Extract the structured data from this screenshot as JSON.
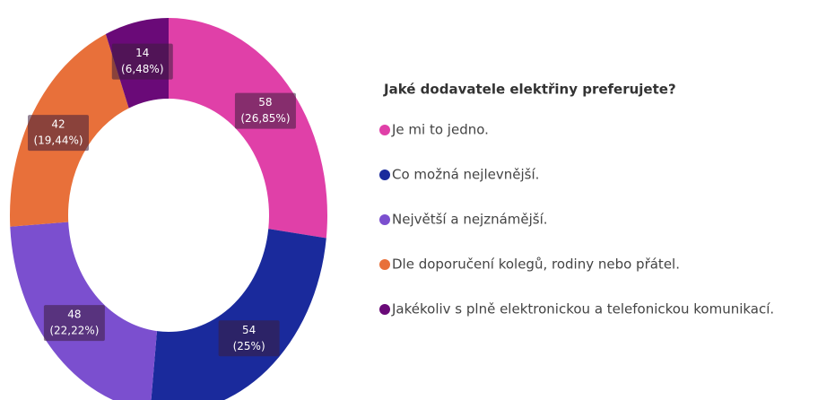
{
  "chart_data": {
    "type": "pie",
    "donut": true,
    "title": "Jaké dodavatele elektřiny preferujete?",
    "categories": [
      "Je mi to jedno.",
      "Co možná nejlevnější.",
      "Největší a nejznámější.",
      "Dle doporučení kolegů, rodiny nebo přátel.",
      "Jakékoliv s plně elektronickou a telefonickou komunikací."
    ],
    "values": [
      58,
      54,
      48,
      42,
      14
    ],
    "percent_labels": [
      "(26,85%)",
      "(25%)",
      "(22,22%)",
      "(19,44%)",
      "(6,48%)"
    ],
    "colors": [
      "#e040a8",
      "#1a2a9c",
      "#7b4fcf",
      "#e8703a",
      "#6a0a78"
    ]
  }
}
